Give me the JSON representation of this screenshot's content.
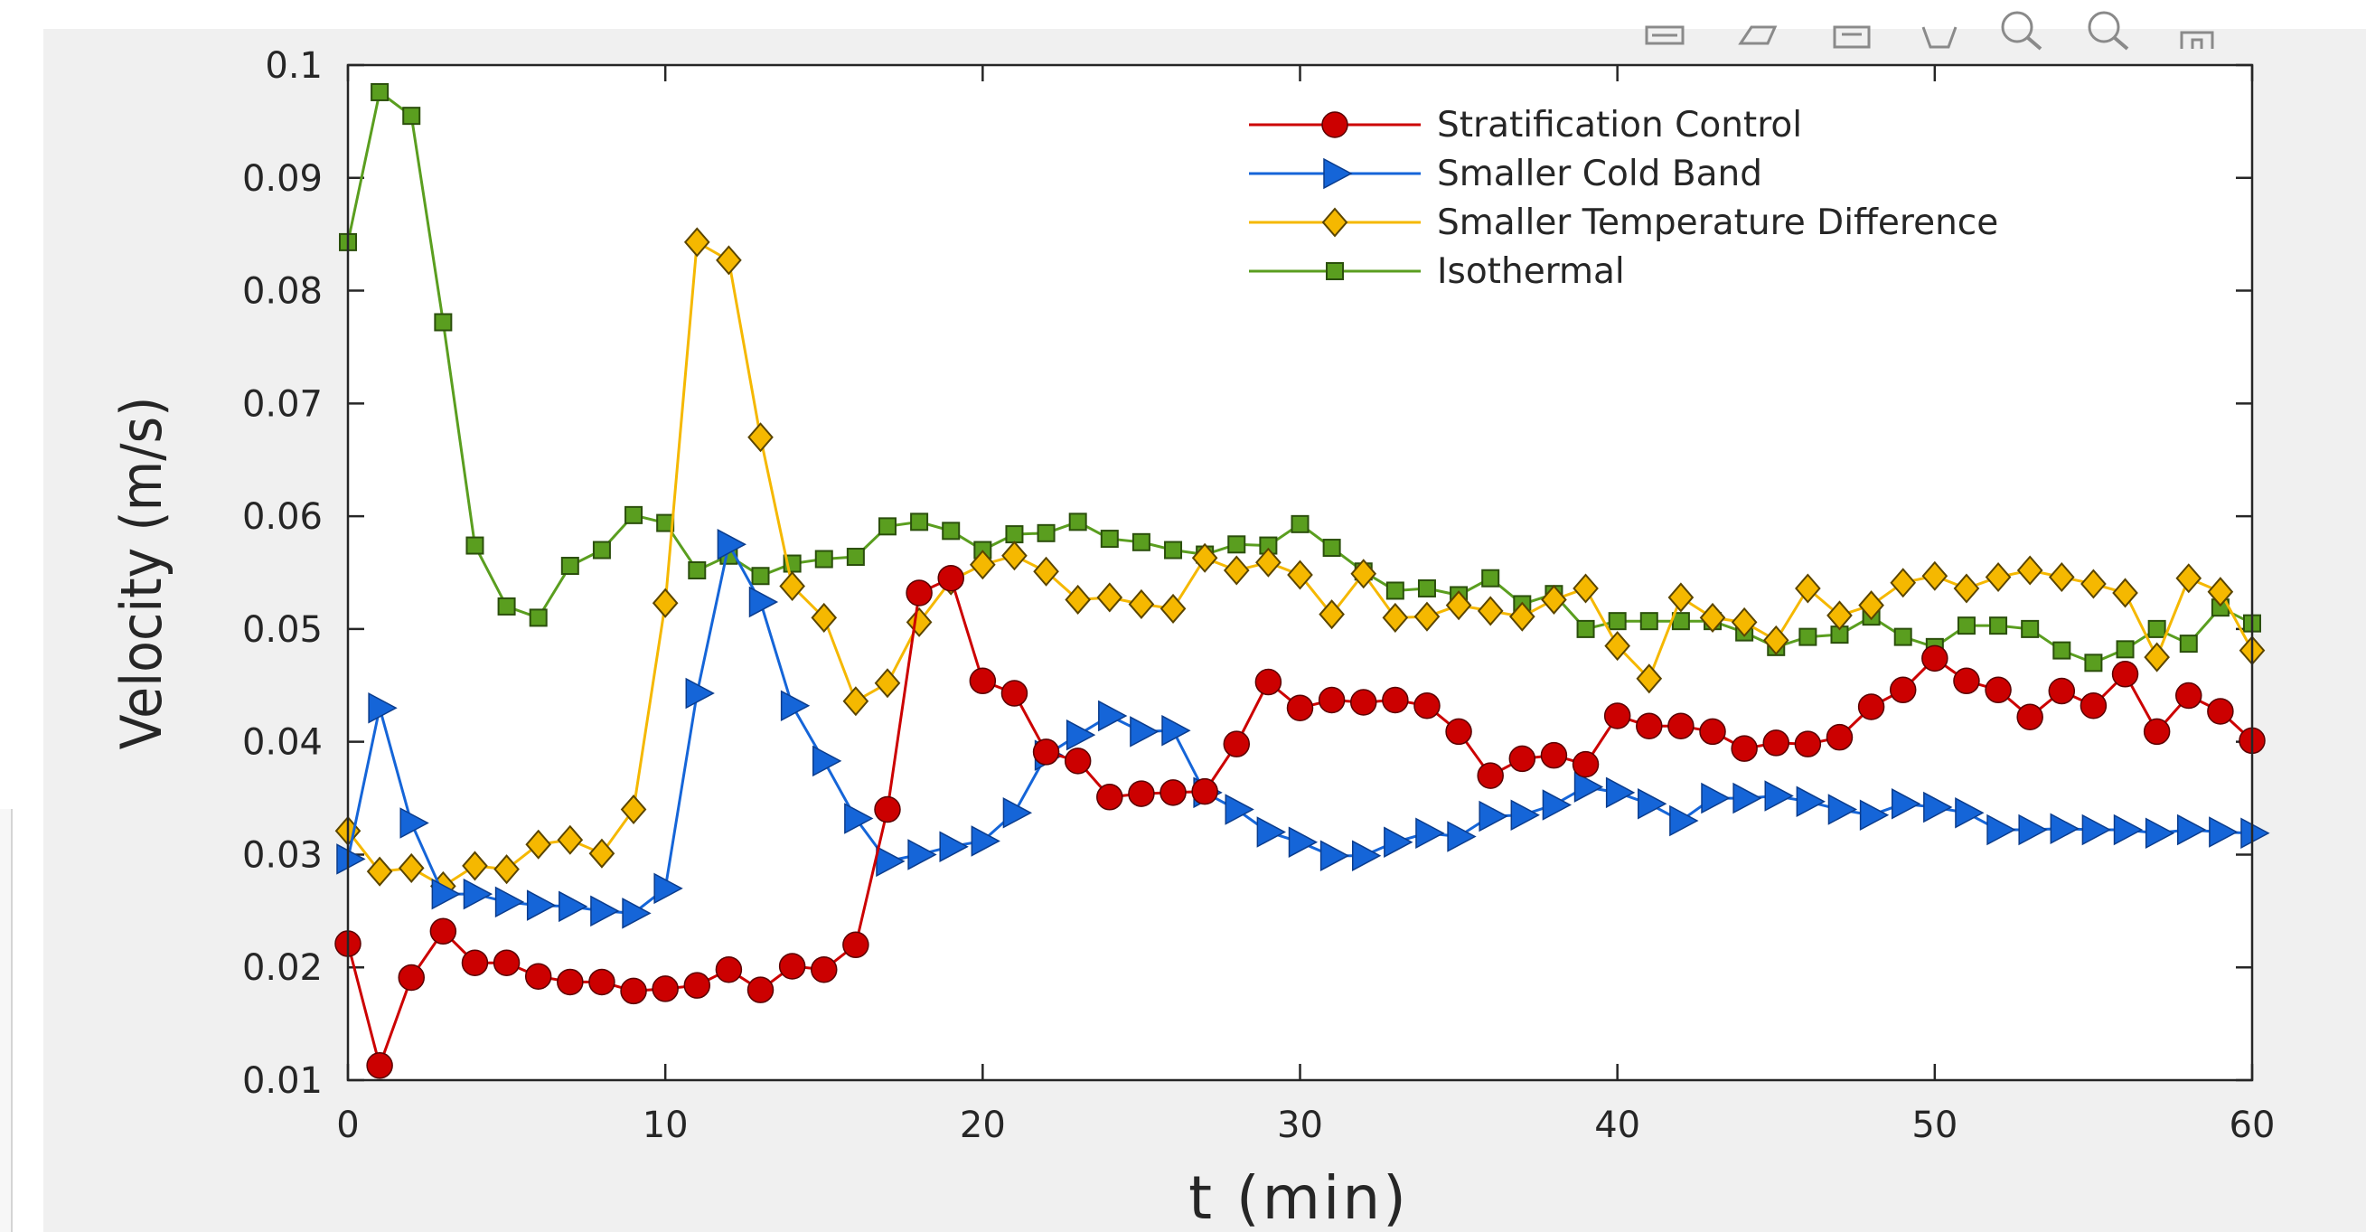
{
  "toolbar": {
    "icons": [
      "export-icon",
      "brush-icon",
      "data-tip-icon",
      "rotate-icon",
      "zoom-in-icon",
      "zoom-out-icon",
      "home-icon"
    ]
  },
  "chart_data": {
    "type": "line",
    "title": "",
    "xlabel": "t (min)",
    "ylabel": "Velocity (m/s)",
    "xlim": [
      0,
      60
    ],
    "ylim": [
      0.01,
      0.1
    ],
    "xticks": [
      0,
      10,
      20,
      30,
      40,
      50,
      60
    ],
    "yticks": [
      0.01,
      0.02,
      0.03,
      0.04,
      0.05,
      0.06,
      0.07,
      0.08,
      0.09,
      0.1
    ],
    "xtick_labels": [
      "0",
      "10",
      "20",
      "30",
      "40",
      "50",
      "60"
    ],
    "ytick_labels": [
      "0.01",
      "0.02",
      "0.03",
      "0.04",
      "0.05",
      "0.06",
      "0.07",
      "0.08",
      "0.09",
      "0.1"
    ],
    "grid": false,
    "legend_position": "top-right",
    "x": [
      0,
      1,
      2,
      3,
      4,
      5,
      6,
      7,
      8,
      9,
      10,
      11,
      12,
      13,
      14,
      15,
      16,
      17,
      18,
      19,
      20,
      21,
      22,
      23,
      24,
      25,
      26,
      27,
      28,
      29,
      30,
      31,
      32,
      33,
      34,
      35,
      36,
      37,
      38,
      39,
      40,
      41,
      42,
      43,
      44,
      45,
      46,
      47,
      48,
      49,
      50,
      51,
      52,
      53,
      54,
      55,
      56,
      57,
      58,
      59,
      60
    ],
    "series": [
      {
        "name": "Stratification Control",
        "color": "#cc0000",
        "marker": "circle",
        "values": [
          0.0221,
          0.0113,
          0.0191,
          0.0232,
          0.0204,
          0.0204,
          0.0192,
          0.0187,
          0.0187,
          0.0179,
          0.0181,
          0.0184,
          0.0198,
          0.018,
          0.0201,
          0.0198,
          0.022,
          0.034,
          0.0532,
          0.0545,
          0.0454,
          0.0443,
          0.0391,
          0.0383,
          0.0351,
          0.0354,
          0.0355,
          0.0356,
          0.0398,
          0.0453,
          0.043,
          0.0437,
          0.0435,
          0.0437,
          0.0432,
          0.0409,
          0.037,
          0.0385,
          0.0388,
          0.038,
          0.0423,
          0.0414,
          0.0414,
          0.0409,
          0.0394,
          0.0399,
          0.0398,
          0.0404,
          0.0431,
          0.0446,
          0.0474,
          0.0454,
          0.0446,
          0.0422,
          0.0445,
          0.0432,
          0.046,
          0.0409,
          0.0441,
          0.0427,
          0.0401
        ]
      },
      {
        "name": "Smaller Cold Band",
        "color": "#1565d8",
        "marker": "triangle-right",
        "values": [
          0.0296,
          0.043,
          0.0328,
          0.0265,
          0.0265,
          0.0258,
          0.0255,
          0.0254,
          0.025,
          0.0248,
          0.027,
          0.0443,
          0.0575,
          0.0524,
          0.0432,
          0.0383,
          0.0332,
          0.0294,
          0.03,
          0.0307,
          0.0312,
          0.0337,
          0.0388,
          0.0406,
          0.0423,
          0.0409,
          0.041,
          0.0355,
          0.034,
          0.032,
          0.0311,
          0.0299,
          0.0299,
          0.0311,
          0.0319,
          0.0316,
          0.0334,
          0.0335,
          0.0344,
          0.036,
          0.0355,
          0.0345,
          0.033,
          0.035,
          0.035,
          0.0352,
          0.0347,
          0.034,
          0.0335,
          0.0345,
          0.0342,
          0.0337,
          0.0322,
          0.0322,
          0.0323,
          0.0322,
          0.0322,
          0.0319,
          0.0322,
          0.032,
          0.0319
        ]
      },
      {
        "name": "Smaller Temperature Difference",
        "color": "#f5b800",
        "marker": "diamond",
        "values": [
          0.0321,
          0.0285,
          0.0288,
          0.0272,
          0.029,
          0.0287,
          0.0309,
          0.0313,
          0.0301,
          0.034,
          0.0523,
          0.0843,
          0.0827,
          0.067,
          0.0538,
          0.051,
          0.0436,
          0.0452,
          0.0506,
          0.0543,
          0.0557,
          0.0565,
          0.0551,
          0.0526,
          0.0528,
          0.0522,
          0.0518,
          0.0563,
          0.0552,
          0.0559,
          0.0548,
          0.0513,
          0.0549,
          0.051,
          0.0511,
          0.0521,
          0.0516,
          0.0511,
          0.0526,
          0.0536,
          0.0485,
          0.0456,
          0.0528,
          0.051,
          0.0506,
          0.049,
          0.0536,
          0.0512,
          0.0521,
          0.0541,
          0.0547,
          0.0536,
          0.0546,
          0.0552,
          0.0546,
          0.054,
          0.0532,
          0.0475,
          0.0545,
          0.0533,
          0.0481
        ]
      },
      {
        "name": "Isothermal",
        "color": "#5a9e1f",
        "marker": "square",
        "values": [
          0.0843,
          0.0976,
          0.0955,
          0.0772,
          0.0574,
          0.052,
          0.051,
          0.0556,
          0.057,
          0.0601,
          0.0594,
          0.0552,
          0.0565,
          0.0547,
          0.0558,
          0.0562,
          0.0564,
          0.0591,
          0.0595,
          0.0587,
          0.057,
          0.0584,
          0.0585,
          0.0595,
          0.058,
          0.0577,
          0.057,
          0.0566,
          0.0575,
          0.0574,
          0.0593,
          0.0572,
          0.0551,
          0.0534,
          0.0536,
          0.053,
          0.0545,
          0.0522,
          0.0531,
          0.05,
          0.0507,
          0.0507,
          0.0507,
          0.0507,
          0.0497,
          0.0484,
          0.0493,
          0.0495,
          0.0511,
          0.0493,
          0.0484,
          0.0503,
          0.0503,
          0.05,
          0.0481,
          0.047,
          0.0482,
          0.05,
          0.0487,
          0.0519,
          0.0505
        ]
      }
    ]
  }
}
